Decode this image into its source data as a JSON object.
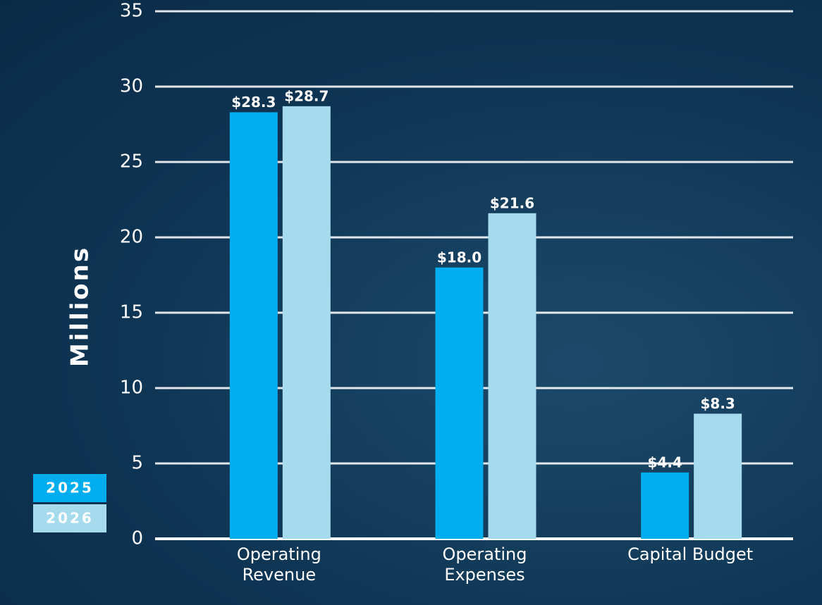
{
  "chart_data": {
    "type": "bar",
    "y_label": "Millions",
    "categories": [
      "Operating Revenue",
      "Operating Expenses",
      "Capital Budget"
    ],
    "series": [
      {
        "name": "2025",
        "color": "#00adee",
        "values": [
          28.3,
          18.0,
          4.4
        ],
        "value_labels": [
          "$28.3",
          "$18.0",
          "$4.4"
        ]
      },
      {
        "name": "2026",
        "color": "#a6dbee",
        "values": [
          28.7,
          21.6,
          8.3
        ],
        "value_labels": [
          "$28.7",
          "$21.6",
          "$8.3"
        ]
      }
    ],
    "ylim": [
      0,
      35
    ],
    "yticks": [
      0,
      5,
      10,
      15,
      20,
      25,
      30,
      35
    ],
    "grid": true,
    "legend": "lower left"
  }
}
